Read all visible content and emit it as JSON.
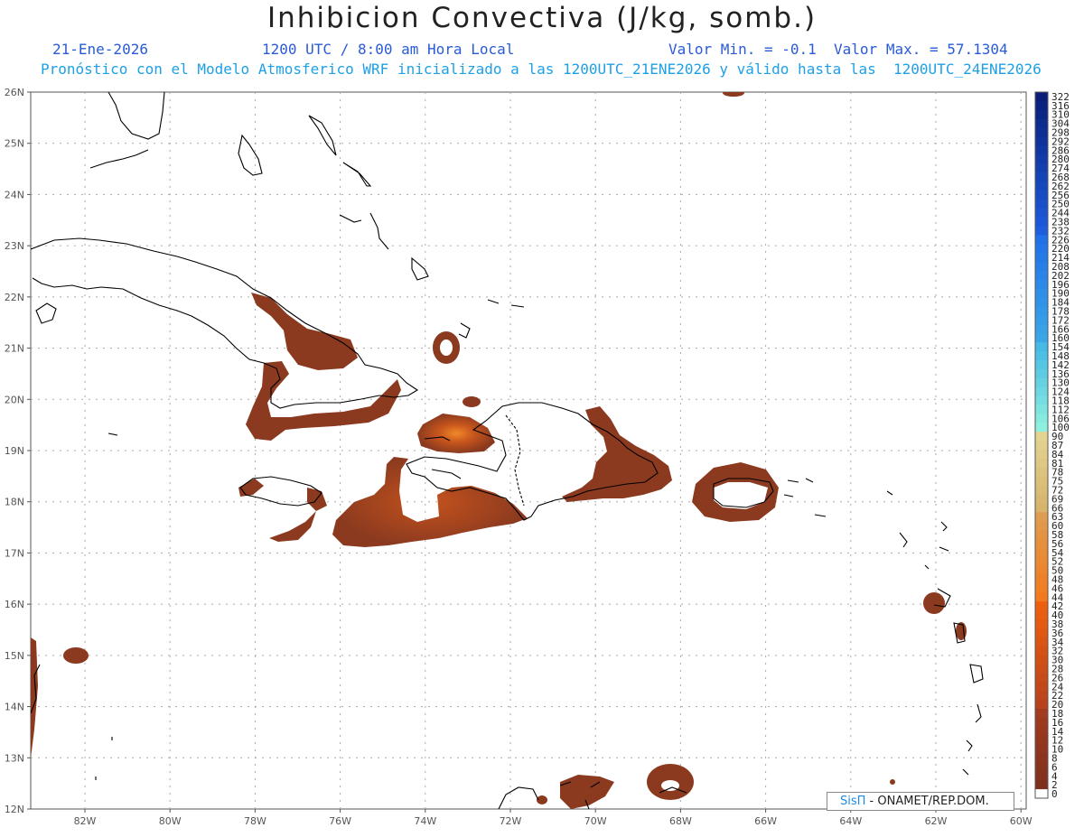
{
  "title": "Inhibicion Convectiva (J/kg, somb.)",
  "date": "21-Ene-2026",
  "time": "1200 UTC / 8:00 am Hora Local",
  "minmax": "Valor Min. = -0.1  Valor Max. = 57.1304",
  "forecast": "Pronóstico con el Modelo Atmosferico WRF inicializado a las 1200UTC_21ENE2026 y válido hasta las  1200UTC_24ENE2026",
  "credit_brand": "SisΠ",
  "credit_text": " - ONAMET/REP.DOM.",
  "lat_labels": [
    "26N",
    "25N",
    "24N",
    "23N",
    "22N",
    "21N",
    "20N",
    "19N",
    "18N",
    "17N",
    "16N",
    "15N",
    "14N",
    "13N",
    "12N"
  ],
  "lon_labels": [
    "82W",
    "80W",
    "78W",
    "76W",
    "74W",
    "72W",
    "70W",
    "68W",
    "66W",
    "64W",
    "62W",
    "60W"
  ],
  "colorbar_labels": [
    "322",
    "316",
    "310",
    "304",
    "298",
    "292",
    "286",
    "280",
    "274",
    "268",
    "262",
    "256",
    "250",
    "244",
    "238",
    "232",
    "226",
    "220",
    "214",
    "208",
    "202",
    "196",
    "190",
    "184",
    "178",
    "172",
    "166",
    "160",
    "154",
    "148",
    "142",
    "136",
    "130",
    "124",
    "118",
    "112",
    "106",
    "100",
    "90",
    "87",
    "84",
    "81",
    "78",
    "75",
    "72",
    "69",
    "66",
    "63",
    "60",
    "58",
    "56",
    "54",
    "52",
    "50",
    "48",
    "46",
    "44",
    "42",
    "40",
    "38",
    "36",
    "34",
    "32",
    "30",
    "28",
    "26",
    "24",
    "22",
    "20",
    "18",
    "16",
    "14",
    "12",
    "10",
    "8",
    "6",
    "4",
    "2",
    "0"
  ],
  "colors": {
    "shading": "#8b3a1f",
    "shading_hot": "#d2601a",
    "coast": "#000000",
    "grid": "#aaaaaa",
    "title_blue": "#2a5bd7",
    "title_cyan": "#1ea0e6"
  }
}
